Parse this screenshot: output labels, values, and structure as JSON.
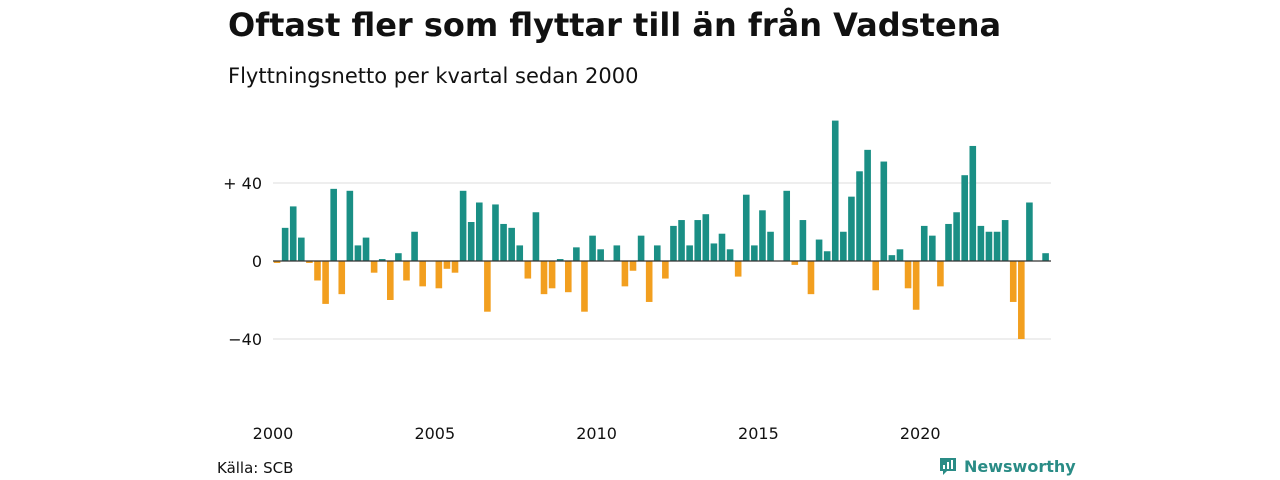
{
  "title": "Oftast fler som flyttar till än från Vadstena",
  "subtitle": "Flyttningsnetto per kvartal sedan 2000",
  "source": "Källa: SCB",
  "brand": "Newsworthy",
  "brand_icon": "newsworthy-logo-icon",
  "colors": {
    "positive": "#1a8f85",
    "negative": "#f29f1f",
    "grid": "#dddddd",
    "brand": "#2a8c86"
  },
  "chart_data": {
    "type": "bar",
    "x_start_year": 2000,
    "periods_per_year": 4,
    "xticks": [
      "2000",
      "2005",
      "2010",
      "2015",
      "2020"
    ],
    "yticks": [
      {
        "value": 40,
        "label": "+ 40"
      },
      {
        "value": 0,
        "label": "0"
      },
      {
        "value": -40,
        "label": "−40"
      }
    ],
    "ylim": [
      -40,
      72
    ],
    "grid": true,
    "values": [
      -1,
      17,
      28,
      12,
      -1,
      -10,
      -22,
      37,
      -17,
      36,
      8,
      12,
      -6,
      1,
      -20,
      4,
      -10,
      15,
      -13,
      0,
      -14,
      -4,
      -6,
      36,
      20,
      30,
      -26,
      29,
      19,
      17,
      8,
      -9,
      25,
      -17,
      -14,
      1,
      -16,
      7,
      -26,
      13,
      6,
      0,
      8,
      -13,
      -5,
      13,
      -21,
      8,
      -9,
      18,
      21,
      8,
      21,
      24,
      9,
      14,
      6,
      -8,
      34,
      8,
      26,
      15,
      0,
      36,
      -2,
      21,
      -17,
      11,
      5,
      72,
      15,
      33,
      46,
      57,
      -15,
      51,
      3,
      6,
      -14,
      -25,
      18,
      13,
      -13,
      19,
      25,
      44,
      59,
      18,
      15,
      15,
      21,
      -21,
      -40,
      30,
      0,
      4
    ]
  }
}
